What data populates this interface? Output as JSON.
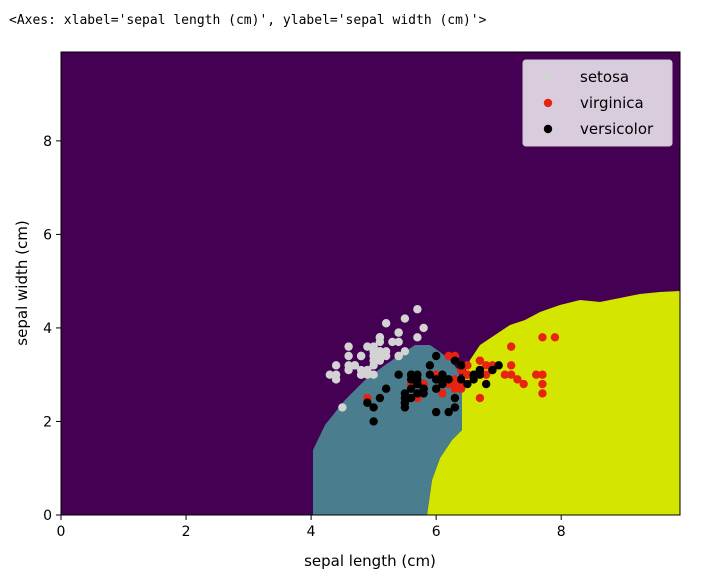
{
  "output_repr": "<Axes: xlabel='sepal length (cm)', ylabel='sepal width (cm)'>",
  "chart_data": {
    "type": "scatter",
    "xlabel": "sepal length (cm)",
    "ylabel": "sepal width (cm)",
    "xlim": [
      0,
      9.9
    ],
    "ylim": [
      0,
      9.9
    ],
    "xticks": [
      "0",
      "2",
      "4",
      "6",
      "8"
    ],
    "yticks": [
      "0",
      "2",
      "4",
      "6",
      "8"
    ],
    "legend_position": "top-right",
    "background_regions": {
      "description_colors": {
        "default": "#440154",
        "middle": "#4a7e8e",
        "right": "#d4e600"
      }
    },
    "series": [
      {
        "name": "setosa",
        "color": "#d3d3d3",
        "points": [
          [
            5.1,
            3.5
          ],
          [
            4.9,
            3.0
          ],
          [
            4.7,
            3.2
          ],
          [
            4.6,
            3.1
          ],
          [
            5.0,
            3.6
          ],
          [
            5.4,
            3.9
          ],
          [
            4.6,
            3.4
          ],
          [
            5.0,
            3.4
          ],
          [
            4.4,
            2.9
          ],
          [
            4.9,
            3.1
          ],
          [
            5.4,
            3.7
          ],
          [
            4.8,
            3.4
          ],
          [
            4.8,
            3.0
          ],
          [
            4.3,
            3.0
          ],
          [
            5.8,
            4.0
          ],
          [
            5.7,
            4.4
          ],
          [
            5.4,
            3.9
          ],
          [
            5.1,
            3.5
          ],
          [
            5.7,
            3.8
          ],
          [
            5.1,
            3.8
          ],
          [
            5.4,
            3.4
          ],
          [
            5.1,
            3.7
          ],
          [
            4.6,
            3.6
          ],
          [
            5.1,
            3.3
          ],
          [
            4.8,
            3.4
          ],
          [
            5.0,
            3.0
          ],
          [
            5.0,
            3.4
          ],
          [
            5.2,
            3.5
          ],
          [
            5.2,
            3.4
          ],
          [
            4.7,
            3.2
          ],
          [
            4.8,
            3.1
          ],
          [
            5.4,
            3.4
          ],
          [
            5.2,
            4.1
          ],
          [
            5.5,
            4.2
          ],
          [
            4.9,
            3.1
          ],
          [
            5.0,
            3.2
          ],
          [
            5.5,
            3.5
          ],
          [
            4.9,
            3.6
          ],
          [
            4.4,
            3.0
          ],
          [
            5.1,
            3.4
          ],
          [
            5.0,
            3.5
          ],
          [
            4.5,
            2.3
          ],
          [
            4.4,
            3.2
          ],
          [
            5.0,
            3.5
          ],
          [
            5.1,
            3.8
          ],
          [
            4.8,
            3.0
          ],
          [
            5.1,
            3.8
          ],
          [
            4.6,
            3.2
          ],
          [
            5.3,
            3.7
          ],
          [
            5.0,
            3.3
          ]
        ]
      },
      {
        "name": "virginica",
        "color": "#e8230f",
        "points": [
          [
            6.3,
            3.3
          ],
          [
            5.8,
            2.7
          ],
          [
            7.1,
            3.0
          ],
          [
            6.3,
            2.9
          ],
          [
            6.5,
            3.0
          ],
          [
            7.6,
            3.0
          ],
          [
            4.9,
            2.5
          ],
          [
            7.3,
            2.9
          ],
          [
            6.7,
            2.5
          ],
          [
            7.2,
            3.6
          ],
          [
            6.5,
            3.2
          ],
          [
            6.4,
            2.7
          ],
          [
            6.8,
            3.0
          ],
          [
            5.7,
            2.5
          ],
          [
            5.8,
            2.8
          ],
          [
            6.4,
            3.2
          ],
          [
            6.5,
            3.0
          ],
          [
            7.7,
            3.8
          ],
          [
            7.7,
            2.6
          ],
          [
            6.0,
            2.2
          ],
          [
            6.9,
            3.2
          ],
          [
            5.6,
            2.8
          ],
          [
            7.7,
            2.8
          ],
          [
            6.3,
            2.7
          ],
          [
            6.7,
            3.3
          ],
          [
            7.2,
            3.2
          ],
          [
            6.2,
            2.8
          ],
          [
            6.1,
            3.0
          ],
          [
            6.4,
            2.8
          ],
          [
            7.2,
            3.0
          ],
          [
            7.4,
            2.8
          ],
          [
            7.9,
            3.8
          ],
          [
            6.4,
            2.8
          ],
          [
            6.3,
            2.8
          ],
          [
            6.1,
            2.6
          ],
          [
            7.7,
            3.0
          ],
          [
            6.3,
            3.4
          ],
          [
            6.4,
            3.1
          ],
          [
            6.0,
            3.0
          ],
          [
            6.9,
            3.1
          ],
          [
            6.7,
            3.1
          ],
          [
            6.9,
            3.1
          ],
          [
            5.8,
            2.7
          ],
          [
            6.8,
            3.2
          ],
          [
            6.7,
            3.3
          ],
          [
            6.7,
            3.0
          ],
          [
            6.3,
            2.5
          ],
          [
            6.5,
            3.0
          ],
          [
            6.2,
            3.4
          ],
          [
            5.9,
            3.0
          ]
        ]
      },
      {
        "name": "versicolor",
        "color": "#000000",
        "points": [
          [
            7.0,
            3.2
          ],
          [
            6.4,
            3.2
          ],
          [
            6.9,
            3.1
          ],
          [
            5.5,
            2.3
          ],
          [
            6.5,
            2.8
          ],
          [
            5.7,
            2.8
          ],
          [
            6.3,
            3.3
          ],
          [
            4.9,
            2.4
          ],
          [
            6.6,
            2.9
          ],
          [
            5.2,
            2.7
          ],
          [
            5.0,
            2.0
          ],
          [
            5.9,
            3.0
          ],
          [
            6.0,
            2.2
          ],
          [
            6.1,
            2.9
          ],
          [
            5.6,
            2.9
          ],
          [
            6.7,
            3.1
          ],
          [
            5.6,
            3.0
          ],
          [
            5.8,
            2.7
          ],
          [
            6.2,
            2.2
          ],
          [
            5.6,
            2.5
          ],
          [
            5.9,
            3.2
          ],
          [
            6.1,
            2.8
          ],
          [
            6.3,
            2.5
          ],
          [
            6.1,
            2.8
          ],
          [
            6.4,
            2.9
          ],
          [
            6.6,
            3.0
          ],
          [
            6.8,
            2.8
          ],
          [
            6.7,
            3.0
          ],
          [
            6.0,
            2.9
          ],
          [
            5.7,
            2.6
          ],
          [
            5.5,
            2.4
          ],
          [
            5.5,
            2.4
          ],
          [
            5.8,
            2.7
          ],
          [
            6.0,
            2.7
          ],
          [
            5.4,
            3.0
          ],
          [
            6.0,
            3.4
          ],
          [
            6.7,
            3.1
          ],
          [
            6.3,
            2.3
          ],
          [
            5.6,
            3.0
          ],
          [
            5.5,
            2.5
          ],
          [
            5.5,
            2.6
          ],
          [
            6.1,
            3.0
          ],
          [
            5.8,
            2.6
          ],
          [
            5.0,
            2.3
          ],
          [
            5.6,
            2.7
          ],
          [
            5.7,
            3.0
          ],
          [
            5.7,
            2.9
          ],
          [
            6.2,
            2.9
          ],
          [
            5.1,
            2.5
          ],
          [
            5.7,
            2.8
          ]
        ]
      }
    ]
  }
}
